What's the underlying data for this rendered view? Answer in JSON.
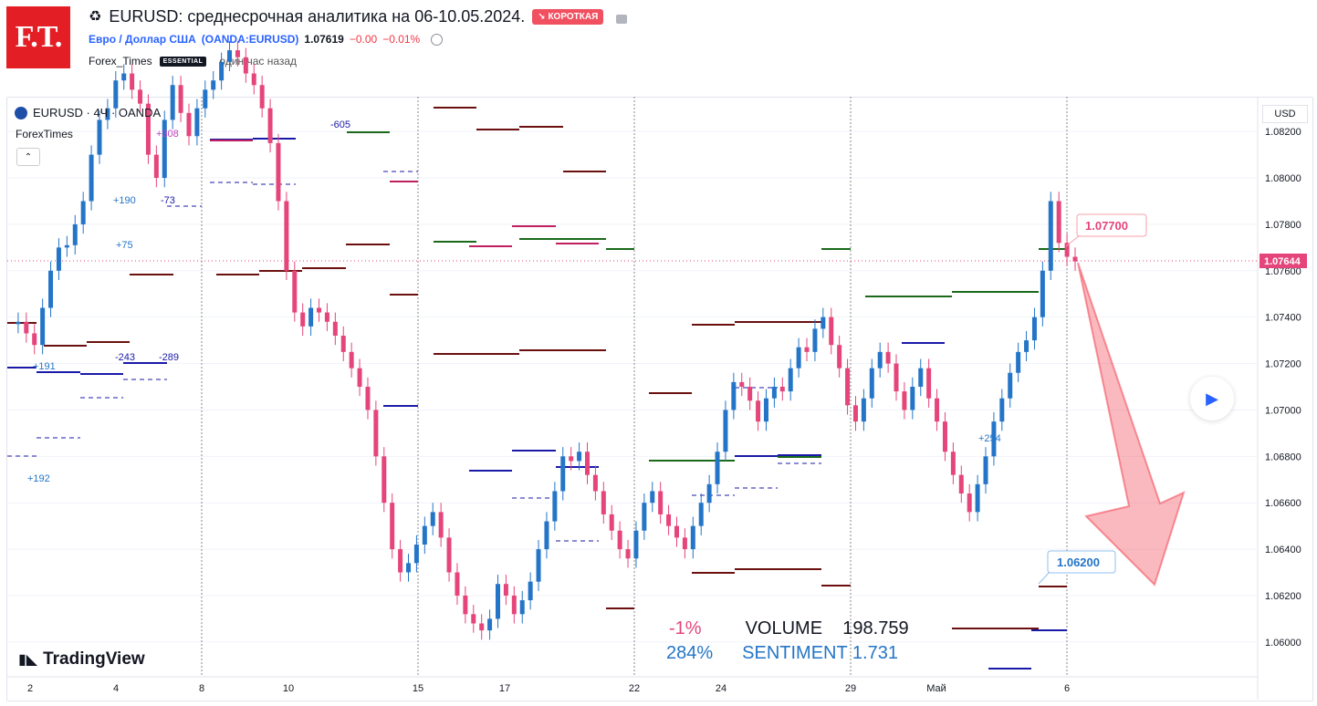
{
  "header": {
    "logo_text": "F.T.",
    "recycle_icon": "♻",
    "title": "EURUSD: среднесрочная аналитика на 06-10.05.2024.",
    "badge": "↘ КОРОТКАЯ",
    "symbol_name": "Евро / Доллар США",
    "symbol_code": "(OANDA:EURUSD)",
    "price": "1.07619",
    "change": "−0.00",
    "change_pct": "−0.01%",
    "author": "Forex_Times",
    "author_badge": "ESSENTIAL",
    "time_ago": "один час назад"
  },
  "chart": {
    "legend": "EURUSD · 4Ч · OANDA",
    "indicator": "ForexTimes",
    "collapse": "⌃",
    "currency": "USD",
    "current_price": "1.07644",
    "target_high": "1.07700",
    "target_low": "1.06200",
    "stat_pct": "-1%",
    "stat_volume": "VOLUME    198.759",
    "stat_pct2": "284%",
    "stat_sentiment": "SENTIMENT 1.731",
    "brand": "TradingView",
    "annotations": [
      "+308",
      "-605",
      "+190",
      "-73",
      "+75",
      "-243",
      "-289",
      "+191",
      "+192",
      "+254"
    ]
  },
  "chart_data": {
    "type": "candlestick",
    "title": "EURUSD · 4Ч · OANDA",
    "y_ticks": [
      "1.08200",
      "1.08000",
      "1.07800",
      "1.07600",
      "1.07400",
      "1.07200",
      "1.07000",
      "1.06800",
      "1.06600",
      "1.06400",
      "1.06200",
      "1.06000"
    ],
    "x_ticks": [
      "2",
      "4",
      "8",
      "10",
      "15",
      "17",
      "22",
      "24",
      "29",
      "Май",
      "6"
    ],
    "ylim": [
      1.0585,
      1.0835
    ]
  },
  "colors": {
    "up": "#2475c8",
    "down": "#e5457a",
    "grid": "#f0f3fa"
  }
}
